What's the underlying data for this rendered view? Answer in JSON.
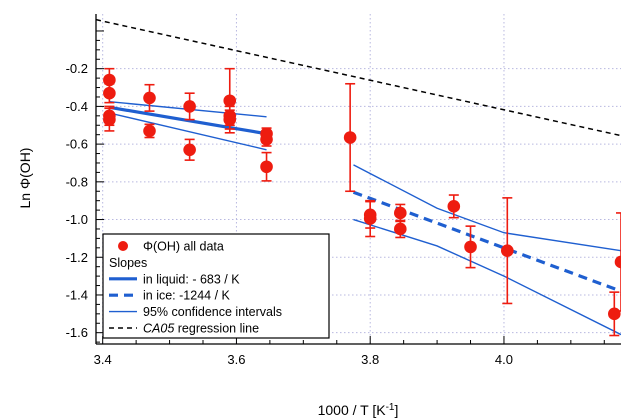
{
  "chart_data": {
    "type": "scatter",
    "xlabel": "1000 / T  [K⁻¹]",
    "ylabel": "Ln Φ(OH)",
    "xlim": [
      3.39,
      4.175
    ],
    "ylim": [
      -1.66,
      0.09
    ],
    "x_ticks": [
      3.4,
      3.6,
      3.8,
      4.0
    ],
    "x_tick_labels": [
      "3.4",
      "3.6",
      "3.8",
      "4.0"
    ],
    "y_ticks": [
      -0.2,
      -0.4,
      -0.6,
      -0.8,
      -1.0,
      -1.2,
      -1.4,
      -1.6
    ],
    "y_tick_labels": [
      "-0.2",
      "-0.4",
      "-0.6",
      "-0.8",
      "-1.0",
      "-1.2",
      "-1.4",
      "-1.6"
    ],
    "grid": true,
    "legend_position": "bottom-left",
    "colors": {
      "data": "#ee1c10",
      "fit": "#1f5fd0",
      "regression": "#000000",
      "grid": "#b8b8e0"
    },
    "series": [
      {
        "name": "Φ(OH) all data",
        "kind": "points",
        "points": [
          {
            "x": 3.41,
            "y": -0.26,
            "err": 0.06
          },
          {
            "x": 3.41,
            "y": -0.33,
            "err": 0.05
          },
          {
            "x": 3.41,
            "y": -0.45,
            "err": 0.05
          },
          {
            "x": 3.41,
            "y": -0.47,
            "err": 0.06
          },
          {
            "x": 3.47,
            "y": -0.355,
            "err": 0.07
          },
          {
            "x": 3.47,
            "y": -0.53,
            "err": 0.035
          },
          {
            "x": 3.53,
            "y": -0.4,
            "err": 0.07
          },
          {
            "x": 3.53,
            "y": -0.63,
            "err": 0.055
          },
          {
            "x": 3.59,
            "y": -0.37,
            "err": 0.17
          },
          {
            "x": 3.59,
            "y": -0.45,
            "err": 0.05
          },
          {
            "x": 3.59,
            "y": -0.47,
            "err": 0.05
          },
          {
            "x": 3.645,
            "y": -0.545,
            "err": 0.03
          },
          {
            "x": 3.645,
            "y": -0.575,
            "err": 0.035
          },
          {
            "x": 3.645,
            "y": -0.72,
            "err": 0.075
          },
          {
            "x": 3.77,
            "y": -0.565,
            "err": 0.285
          },
          {
            "x": 3.8,
            "y": -0.975,
            "err": 0.07
          },
          {
            "x": 3.8,
            "y": -0.995,
            "err": 0.095
          },
          {
            "x": 3.845,
            "y": -0.965,
            "err": 0.045
          },
          {
            "x": 3.845,
            "y": -1.05,
            "err": 0.045
          },
          {
            "x": 3.925,
            "y": -0.93,
            "err": 0.06
          },
          {
            "x": 3.95,
            "y": -1.145,
            "err": 0.11
          },
          {
            "x": 4.005,
            "y": -1.165,
            "err": 0.28
          },
          {
            "x": 4.165,
            "y": -1.5,
            "err": 0.115
          },
          {
            "x": 4.175,
            "y": -1.225,
            "err": 0.26
          }
        ]
      },
      {
        "name": "in liquid: - 683 / K",
        "kind": "line",
        "style": "solid-thick",
        "x": [
          3.41,
          3.645
        ],
        "y": [
          -0.405,
          -0.545
        ]
      },
      {
        "name": "in ice:  -1244 / K",
        "kind": "line",
        "style": "dashed-thick",
        "x": [
          3.775,
          4.175
        ],
        "y": [
          -0.855,
          -1.38
        ]
      },
      {
        "name": " 95% confidence intervals",
        "kind": "lines",
        "style": "solid-thin",
        "lines": [
          {
            "x": [
              3.41,
              3.645
            ],
            "y": [
              -0.375,
              -0.455
            ]
          },
          {
            "x": [
              3.41,
              3.645
            ],
            "y": [
              -0.435,
              -0.63
            ]
          },
          {
            "x": [
              3.775,
              3.9,
              4.0,
              4.175
            ],
            "y": [
              -0.71,
              -0.94,
              -1.07,
              -1.165
            ]
          },
          {
            "x": [
              3.775,
              3.9,
              4.0,
              4.175
            ],
            "y": [
              -1.0,
              -1.14,
              -1.3,
              -1.61
            ]
          }
        ]
      },
      {
        "name": "CA05 regression line",
        "kind": "line",
        "style": "dashed-thin-black",
        "x": [
          3.39,
          4.175
        ],
        "y": [
          0.06,
          -0.555
        ]
      }
    ],
    "legend": {
      "entries": [
        {
          "symbol": "marker",
          "label": "Φ(OH) all data"
        },
        {
          "symbol": "none",
          "label": "Slopes"
        },
        {
          "symbol": "solid-thick",
          "label": "in liquid: - 683 / K"
        },
        {
          "symbol": "dashed-thick",
          "label": "in ice:  -1244 / K"
        },
        {
          "symbol": "solid-thin",
          "label": " 95% confidence intervals"
        },
        {
          "symbol": "dashed-thin-black",
          "label": "CA05 regression line",
          "italic_prefix": "CA05",
          "suffix": " regression line"
        }
      ]
    }
  }
}
